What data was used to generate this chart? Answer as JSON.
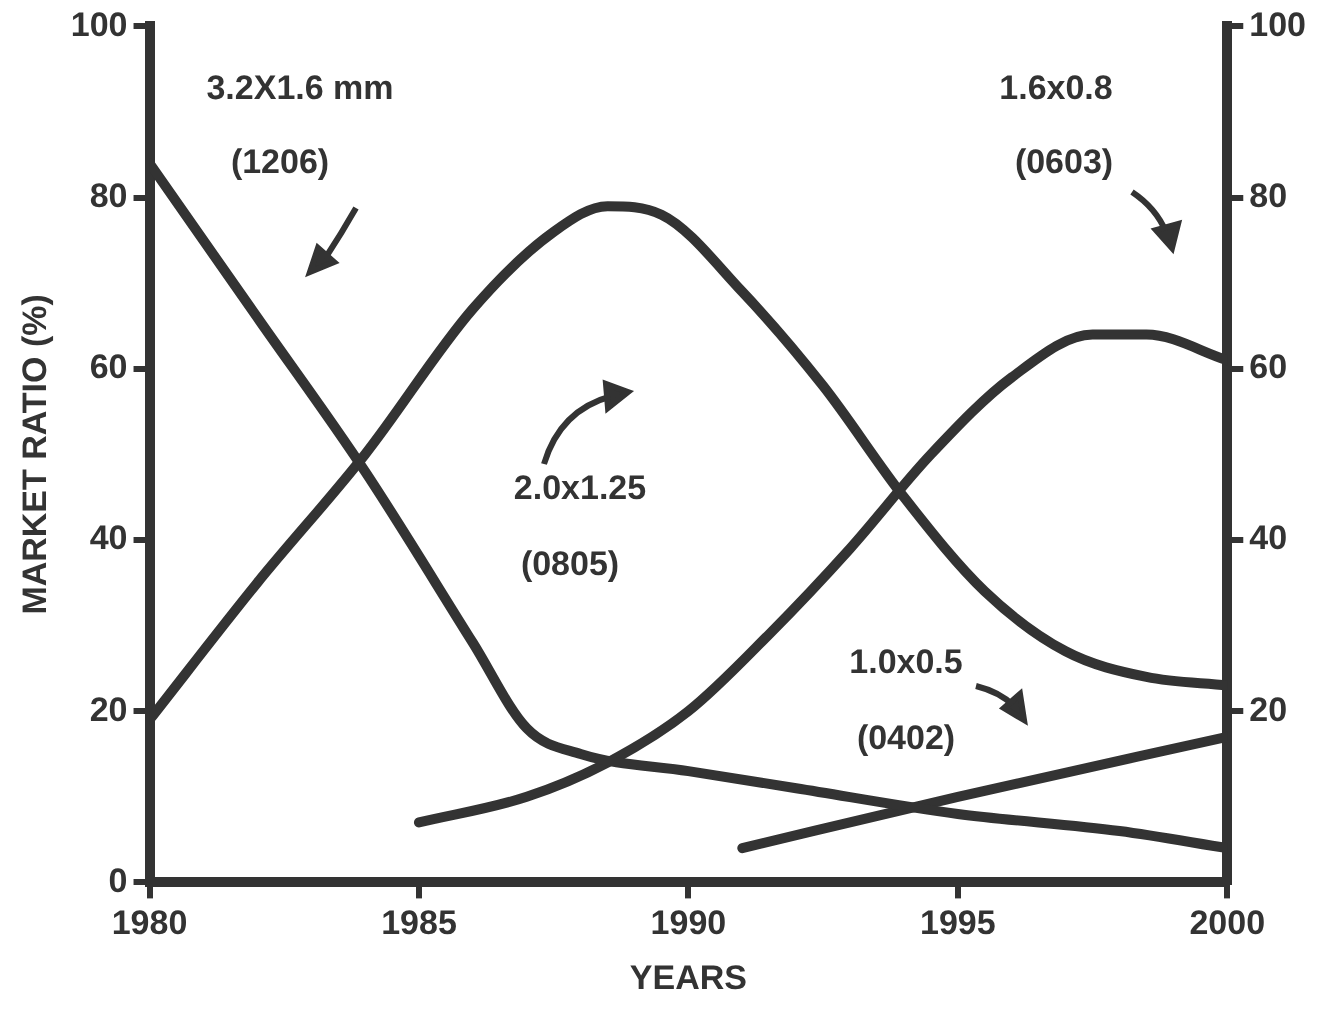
{
  "chart_data": {
    "type": "line",
    "xlabel": "YEARS",
    "ylabel": "MARKET RATIO (%)",
    "xlim": [
      1980,
      2000
    ],
    "xticks": [
      1980,
      1985,
      1990,
      1995,
      2000
    ],
    "ylim": [
      0,
      100
    ],
    "yticks": [
      0,
      20,
      40,
      60,
      80,
      100
    ],
    "y2lim": [
      0,
      100
    ],
    "y2ticks": [
      20,
      40,
      60,
      80,
      100
    ],
    "series": [
      {
        "color": "#333333",
        "x": [
          1980,
          1982,
          1984,
          1986,
          1987,
          1988,
          1990,
          1992,
          1995,
          1998,
          2000
        ],
        "values": [
          84,
          66,
          48,
          28,
          18,
          15,
          13,
          11,
          8,
          6,
          4
        ]
      },
      {
        "color": "#333333",
        "x": [
          1980,
          1982,
          1984,
          1986,
          1987.5,
          1988.5,
          1989.5,
          1991,
          1992.5,
          1994,
          1995.5,
          1997,
          1998.5,
          2000
        ],
        "values": [
          19,
          35,
          50,
          67,
          76,
          79,
          78,
          69,
          58,
          45,
          34,
          27,
          24,
          23
        ]
      },
      {
        "color": "#333333",
        "x": [
          1985,
          1987,
          1988.5,
          1990,
          1991.5,
          1993,
          1994.5,
          1996,
          1997.5,
          1998.5,
          2000
        ],
        "values": [
          7,
          10,
          14,
          20,
          29,
          39,
          50,
          59,
          64,
          64,
          61
        ]
      },
      {
        "color": "#333333",
        "x": [
          1991,
          1995,
          2000
        ],
        "values": [
          4,
          10,
          17
        ]
      }
    ],
    "annotations": [
      "3.2X1.6 mm",
      "(1206)",
      "2.0x1.25",
      "(0805)",
      "1.6x0.8",
      "(0603)",
      "1.0x0.5",
      "(0402)"
    ]
  }
}
